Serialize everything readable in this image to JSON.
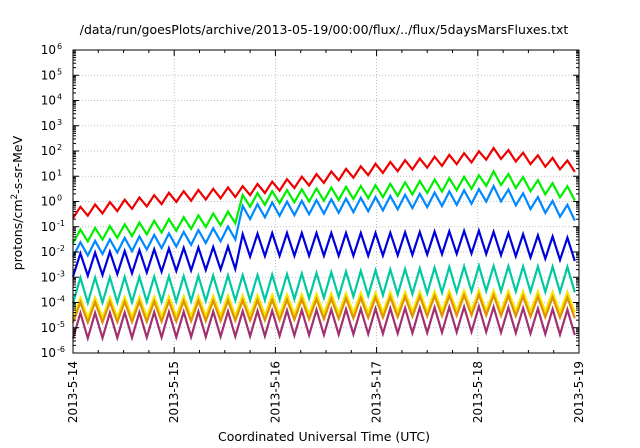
{
  "chart_data": {
    "type": "line",
    "title": "/data/run/goesPlots/archive/2013-05-19/00:00/flux/../flux/5daysMarsFluxes.txt",
    "xlabel": "Coordinated Universal Time (UTC)",
    "ylabel": {
      "pre": "protons/cm",
      "sup": "2",
      "post": "-s-sr-MeV"
    },
    "x_ticks": [
      "2013-5-14",
      "2013-5-15",
      "2013-5-16",
      "2013-5-17",
      "2013-5-18",
      "2013-5-19"
    ],
    "xlim": [
      "2013-5-14 00:00",
      "2013-5-19 00:00"
    ],
    "y_ticks": [
      {
        "base": "10",
        "exp": "6"
      },
      {
        "base": "10",
        "exp": "5"
      },
      {
        "base": "10",
        "exp": "4"
      },
      {
        "base": "10",
        "exp": "3"
      },
      {
        "base": "10",
        "exp": "2"
      },
      {
        "base": "10",
        "exp": "1"
      },
      {
        "base": "10",
        "exp": "0"
      },
      {
        "base": "10",
        "exp": "-1"
      },
      {
        "base": "10",
        "exp": "-2"
      },
      {
        "base": "10",
        "exp": "-3"
      },
      {
        "base": "10",
        "exp": "-4"
      },
      {
        "base": "10",
        "exp": "-5"
      },
      {
        "base": "10",
        "exp": "-6"
      }
    ],
    "y_scale": "log",
    "ylim": [
      1e-06,
      1000000.0
    ],
    "grid": true,
    "series": [
      {
        "color": "#ee0000",
        "x": [
          "2013-5-14 00:00",
          "2013-5-15 00:00",
          "2013-5-15 16:00",
          "2013-5-16 00:00",
          "2013-5-17 00:00",
          "2013-5-18 00:00",
          "2013-5-18 04:00",
          "2013-5-19 00:00"
        ],
        "y": [
          0.35,
          1.5,
          2.5,
          4,
          20,
          60,
          85,
          22
        ],
        "swing": 0.4
      },
      {
        "color": "#00ee00",
        "x": [
          "2013-5-14 00:00",
          "2013-5-15 00:00",
          "2013-5-15 15:00",
          "2013-5-15 16:00",
          "2013-5-16 00:00",
          "2013-5-17 00:00",
          "2013-5-18 00:00",
          "2013-5-18 04:00",
          "2013-5-19 00:00"
        ],
        "y": [
          0.04,
          0.12,
          0.25,
          1.0,
          1.5,
          2.5,
          6,
          9,
          1.8
        ],
        "swing": 0.5
      },
      {
        "color": "#0088ff",
        "x": [
          "2013-5-14 00:00",
          "2013-5-15 00:00",
          "2013-5-15 15:00",
          "2013-5-15 16:00",
          "2013-5-16 00:00",
          "2013-5-17 00:00",
          "2013-5-18 00:00",
          "2013-5-18 04:00",
          "2013-5-19 00:00"
        ],
        "y": [
          0.012,
          0.03,
          0.06,
          0.35,
          0.5,
          0.8,
          1.6,
          2.2,
          0.3
        ],
        "swing": 0.55
      },
      {
        "color": "#0000dd",
        "x": [
          "2013-5-14 00:00",
          "2013-5-15 00:00",
          "2013-5-15 15:00",
          "2013-5-15 16:00",
          "2013-5-16 00:00",
          "2013-5-17 00:00",
          "2013-5-18 00:00",
          "2013-5-19 00:00"
        ],
        "y": [
          0.003,
          0.005,
          0.006,
          0.018,
          0.02,
          0.02,
          0.025,
          0.012
        ],
        "swing": 0.9
      },
      {
        "color": "#00c8a0",
        "x": [
          "2013-5-14 00:00",
          "2013-5-16 00:00",
          "2013-5-17 00:00",
          "2013-5-18 00:00",
          "2013-5-19 00:00"
        ],
        "y": [
          0.0003,
          0.0004,
          0.0006,
          0.0009,
          0.0008
        ],
        "swing": 1.0
      },
      {
        "color": "#f5e800",
        "x": [
          "2013-5-14 00:00",
          "2013-5-16 00:00",
          "2013-5-18 00:00",
          "2013-5-19 00:00"
        ],
        "y": [
          6e-05,
          8e-05,
          0.00012,
          0.0001
        ],
        "swing": 0.8
      },
      {
        "color": "#e09000",
        "x": [
          "2013-5-14 00:00",
          "2013-5-16 00:00",
          "2013-5-18 00:00",
          "2013-5-19 00:00"
        ],
        "y": [
          4e-05,
          5e-05,
          8e-05,
          6e-05
        ],
        "swing": 0.8
      },
      {
        "color": "#a03070",
        "x": [
          "2013-5-14 00:00",
          "2013-5-16 00:00",
          "2013-5-18 00:00",
          "2013-5-19 00:00"
        ],
        "y": [
          1.2e-05,
          1.5e-05,
          2.2e-05,
          1.6e-05
        ],
        "swing": 1.0
      }
    ]
  }
}
